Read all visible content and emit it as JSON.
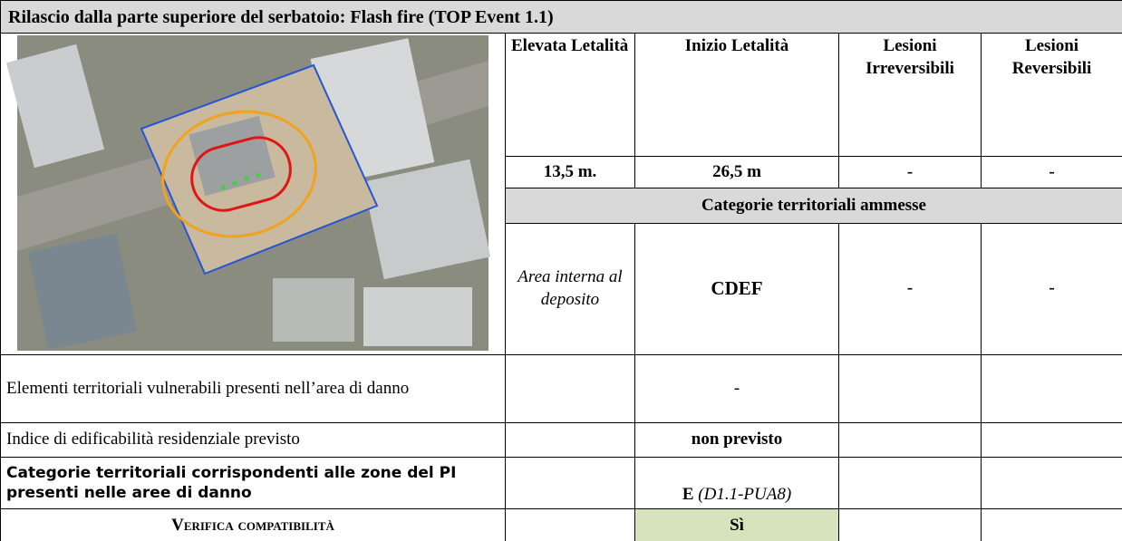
{
  "header": {
    "title": "Rilascio dalla parte superiore del serbatoio: Flash fire (TOP Event 1.1)"
  },
  "table": {
    "columns": [
      "Elevata Letalità",
      "Inizio Letalità",
      "Lesioni Irreversibili",
      "Lesioni Reversibili"
    ],
    "distances": [
      "13,5 m.",
      "26,5 m",
      "-",
      "-"
    ],
    "category_header": "Categorie territoriali ammesse",
    "area_label": "Area interna al deposito",
    "categories": [
      "CDEF",
      "-",
      "-"
    ],
    "rows": [
      {
        "label": "Elementi territoriali vulnerabili presenti nell’area di danno",
        "value": "-"
      },
      {
        "label": "Indice di edificabilità residenziale previsto",
        "value": "non previsto"
      },
      {
        "label": "Categorie territoriali corrispondenti alle zone del PI presenti nelle aree di danno",
        "value": "E",
        "value_note": "(D1.1-PUA8)"
      },
      {
        "label": "Verifica compatibilità",
        "value": "Sì"
      }
    ]
  }
}
